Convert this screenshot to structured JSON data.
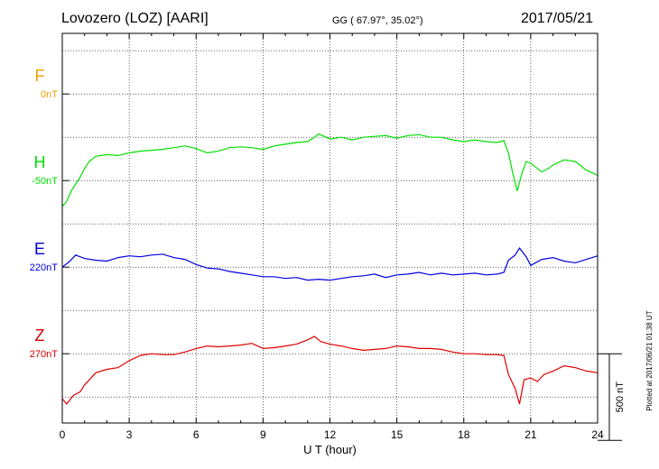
{
  "header": {
    "station": "Lovozero (LOZ)  [AARI]",
    "coords": "GG ( 67.97°,  35.02°)",
    "date": "2017/05/21"
  },
  "footer": {
    "plotted": "Plotted at 2017/06/21 01:38 UT"
  },
  "chart_data": {
    "type": "line",
    "title": "Lovozero (LOZ)  [AARI]",
    "xlabel": "U T (hour)",
    "x_ticks": [
      "0",
      "3",
      "6",
      "9",
      "12",
      "15",
      "18",
      "21",
      "24"
    ],
    "xlim": [
      0,
      24
    ],
    "ylim": [
      -1900,
      350
    ],
    "scale_label": "500 nT",
    "scale_nT": 500,
    "grid": true,
    "series": [
      {
        "name": "F",
        "baseline_label": "0nT",
        "color": "#f0a000",
        "baseline_nT": 0,
        "x": [],
        "values": []
      },
      {
        "name": "H",
        "baseline_label": "-50nT",
        "color": "#00e000",
        "baseline_nT": -500,
        "x": [
          0,
          0.2,
          0.4,
          0.6,
          0.8,
          1.0,
          1.2,
          1.5,
          2.0,
          2.5,
          3.0,
          3.5,
          4.0,
          4.5,
          5.0,
          5.5,
          6.0,
          6.5,
          7.0,
          7.5,
          8.0,
          8.5,
          9.0,
          9.5,
          10.0,
          10.5,
          11.0,
          11.3,
          11.5,
          12.0,
          12.5,
          13.0,
          13.5,
          14.0,
          14.5,
          15.0,
          15.5,
          16.0,
          16.5,
          17.0,
          17.5,
          18.0,
          18.5,
          19.0,
          19.5,
          19.8,
          20.0,
          20.2,
          20.4,
          20.6,
          20.8,
          21.0,
          21.3,
          21.5,
          21.8,
          22.0,
          22.5,
          23.0,
          23.5,
          24.0
        ],
        "values": [
          -650,
          -620,
          -560,
          -520,
          -480,
          -430,
          -390,
          -360,
          -350,
          -355,
          -340,
          -330,
          -325,
          -320,
          -310,
          -300,
          -315,
          -340,
          -330,
          -310,
          -305,
          -310,
          -320,
          -300,
          -290,
          -280,
          -275,
          -250,
          -230,
          -260,
          -250,
          -265,
          -250,
          -245,
          -240,
          -255,
          -240,
          -235,
          -250,
          -250,
          -265,
          -275,
          -265,
          -275,
          -280,
          -270,
          -340,
          -460,
          -560,
          -460,
          -390,
          -400,
          -430,
          -450,
          -430,
          -410,
          -380,
          -390,
          -440,
          -470
        ]
      },
      {
        "name": "E",
        "baseline_label": "220nT",
        "color": "#0000e0",
        "baseline_nT": -1000,
        "x": [
          0,
          0.3,
          0.6,
          1.0,
          1.5,
          2.0,
          2.5,
          3.0,
          3.5,
          4.0,
          4.5,
          5.0,
          5.5,
          6.0,
          6.5,
          7.0,
          7.5,
          8.0,
          8.5,
          9.0,
          9.5,
          10.0,
          10.5,
          11.0,
          11.5,
          12.0,
          12.5,
          13.0,
          13.5,
          14.0,
          14.5,
          15.0,
          15.5,
          16.0,
          16.5,
          17.0,
          17.5,
          18.0,
          18.5,
          19.0,
          19.5,
          19.8,
          20.0,
          20.3,
          20.5,
          20.8,
          21.0,
          21.5,
          22.0,
          22.5,
          23.0,
          23.5,
          24.0
        ],
        "values": [
          -1000,
          -970,
          -930,
          -950,
          -960,
          -965,
          -945,
          -935,
          -940,
          -930,
          -925,
          -945,
          -955,
          -985,
          -1005,
          -1010,
          -1025,
          -1035,
          -1045,
          -1055,
          -1055,
          -1065,
          -1060,
          -1075,
          -1070,
          -1075,
          -1065,
          -1055,
          -1050,
          -1040,
          -1060,
          -1045,
          -1040,
          -1030,
          -1045,
          -1035,
          -1045,
          -1040,
          -1035,
          -1045,
          -1040,
          -1030,
          -960,
          -930,
          -890,
          -940,
          -990,
          -955,
          -945,
          -965,
          -975,
          -955,
          -935
        ]
      },
      {
        "name": "Z",
        "baseline_label": "270nT",
        "color": "#e00000",
        "baseline_nT": -1500,
        "x": [
          0,
          0.2,
          0.5,
          0.8,
          1.0,
          1.5,
          2.0,
          2.5,
          3.0,
          3.5,
          4.0,
          4.5,
          5.0,
          5.5,
          6.0,
          6.5,
          7.0,
          7.5,
          8.0,
          8.5,
          9.0,
          9.5,
          10.0,
          10.5,
          11.0,
          11.3,
          11.6,
          12.0,
          12.5,
          13.0,
          13.5,
          14.0,
          14.5,
          15.0,
          15.5,
          16.0,
          16.5,
          17.0,
          17.5,
          18.0,
          18.5,
          19.0,
          19.5,
          19.8,
          20.0,
          20.3,
          20.5,
          20.7,
          21.0,
          21.3,
          21.6,
          22.0,
          22.5,
          23.0,
          23.5,
          24.0
        ],
        "values": [
          -1760,
          -1790,
          -1740,
          -1720,
          -1680,
          -1610,
          -1590,
          -1580,
          -1540,
          -1510,
          -1500,
          -1505,
          -1505,
          -1490,
          -1470,
          -1455,
          -1460,
          -1455,
          -1450,
          -1440,
          -1470,
          -1465,
          -1455,
          -1445,
          -1420,
          -1400,
          -1430,
          -1445,
          -1455,
          -1470,
          -1480,
          -1475,
          -1470,
          -1455,
          -1460,
          -1470,
          -1470,
          -1475,
          -1490,
          -1500,
          -1500,
          -1505,
          -1505,
          -1510,
          -1620,
          -1700,
          -1790,
          -1650,
          -1640,
          -1660,
          -1620,
          -1600,
          -1570,
          -1580,
          -1600,
          -1610
        ]
      }
    ]
  }
}
